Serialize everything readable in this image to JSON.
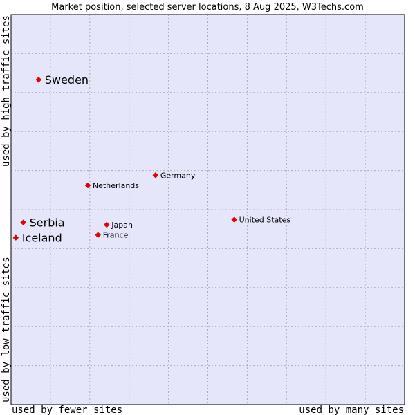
{
  "chart_data": {
    "type": "scatter",
    "title": "Market position, selected server locations, 8 Aug 2025, W3Techs.com",
    "xlabel_left": "used by fewer sites",
    "xlabel_right": "used by many sites",
    "ylabel_bottom": "used by low traffic sites",
    "ylabel_top": "used by high traffic sites",
    "xlim": [
      0,
      100
    ],
    "ylim": [
      0,
      100
    ],
    "grid": true,
    "colors": {
      "plot_bg": "#e6e6fa",
      "grid": "#aaaabb",
      "point": "#ee0000",
      "border": "#000000"
    },
    "points": [
      {
        "name": "Sweden",
        "x": 7,
        "y": 83.3,
        "label_size": "big"
      },
      {
        "name": "Germany",
        "x": 36.7,
        "y": 58.8,
        "label_size": "small"
      },
      {
        "name": "Netherlands",
        "x": 19.5,
        "y": 56.2,
        "label_size": "small"
      },
      {
        "name": "United States",
        "x": 56.7,
        "y": 47.4,
        "label_size": "small"
      },
      {
        "name": "Serbia",
        "x": 3.1,
        "y": 46.7,
        "label_size": "big"
      },
      {
        "name": "Japan",
        "x": 24.3,
        "y": 46.1,
        "label_size": "small"
      },
      {
        "name": "France",
        "x": 22.1,
        "y": 43.5,
        "label_size": "small"
      },
      {
        "name": "Iceland",
        "x": 1.2,
        "y": 42.8,
        "label_size": "big"
      }
    ]
  }
}
